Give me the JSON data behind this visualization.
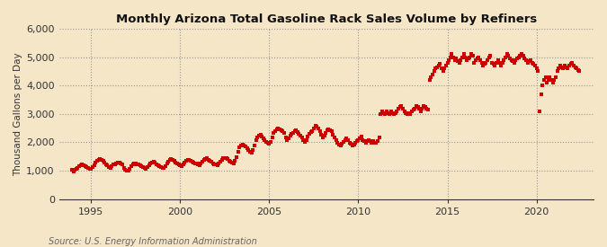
{
  "title": "Monthly Arizona Total Gasoline Rack Sales Volume by Refiners",
  "ylabel": "Thousand Gallons per Day",
  "source": "Source: U.S. Energy Information Administration",
  "background_color": "#f5e6c8",
  "plot_bg_color": "#f5e6c8",
  "marker_color": "#cc0000",
  "ylim": [
    0,
    6000
  ],
  "yticks": [
    0,
    1000,
    2000,
    3000,
    4000,
    5000,
    6000
  ],
  "xlim_start": 1993.2,
  "xlim_end": 2023.2,
  "xticks": [
    1995,
    2000,
    2005,
    2010,
    2015,
    2020
  ],
  "data": [
    [
      1993.917,
      1050
    ],
    [
      1994.0,
      980
    ],
    [
      1994.083,
      1020
    ],
    [
      1994.167,
      1080
    ],
    [
      1994.25,
      1100
    ],
    [
      1994.333,
      1150
    ],
    [
      1994.417,
      1180
    ],
    [
      1994.5,
      1220
    ],
    [
      1994.583,
      1200
    ],
    [
      1994.667,
      1170
    ],
    [
      1994.75,
      1140
    ],
    [
      1994.833,
      1100
    ],
    [
      1994.917,
      1080
    ],
    [
      1995.0,
      1060
    ],
    [
      1995.083,
      1120
    ],
    [
      1995.167,
      1200
    ],
    [
      1995.25,
      1300
    ],
    [
      1995.333,
      1350
    ],
    [
      1995.417,
      1380
    ],
    [
      1995.5,
      1420
    ],
    [
      1995.583,
      1390
    ],
    [
      1995.667,
      1340
    ],
    [
      1995.75,
      1280
    ],
    [
      1995.833,
      1230
    ],
    [
      1995.917,
      1180
    ],
    [
      1996.0,
      1140
    ],
    [
      1996.083,
      1100
    ],
    [
      1996.167,
      1160
    ],
    [
      1996.25,
      1210
    ],
    [
      1996.333,
      1240
    ],
    [
      1996.417,
      1260
    ],
    [
      1996.5,
      1290
    ],
    [
      1996.583,
      1280
    ],
    [
      1996.667,
      1260
    ],
    [
      1996.75,
      1230
    ],
    [
      1996.833,
      1100
    ],
    [
      1996.917,
      1050
    ],
    [
      1997.0,
      1000
    ],
    [
      1997.083,
      1010
    ],
    [
      1997.167,
      1080
    ],
    [
      1997.25,
      1150
    ],
    [
      1997.333,
      1220
    ],
    [
      1997.417,
      1250
    ],
    [
      1997.5,
      1270
    ],
    [
      1997.583,
      1240
    ],
    [
      1997.667,
      1210
    ],
    [
      1997.75,
      1180
    ],
    [
      1997.833,
      1150
    ],
    [
      1997.917,
      1120
    ],
    [
      1998.0,
      1090
    ],
    [
      1998.083,
      1070
    ],
    [
      1998.167,
      1130
    ],
    [
      1998.25,
      1200
    ],
    [
      1998.333,
      1260
    ],
    [
      1998.417,
      1290
    ],
    [
      1998.5,
      1310
    ],
    [
      1998.583,
      1280
    ],
    [
      1998.667,
      1240
    ],
    [
      1998.75,
      1200
    ],
    [
      1998.833,
      1170
    ],
    [
      1998.917,
      1140
    ],
    [
      1999.0,
      1110
    ],
    [
      1999.083,
      1100
    ],
    [
      1999.167,
      1170
    ],
    [
      1999.25,
      1250
    ],
    [
      1999.333,
      1320
    ],
    [
      1999.417,
      1370
    ],
    [
      1999.5,
      1400
    ],
    [
      1999.583,
      1370
    ],
    [
      1999.667,
      1340
    ],
    [
      1999.75,
      1300
    ],
    [
      1999.833,
      1260
    ],
    [
      1999.917,
      1220
    ],
    [
      2000.0,
      1190
    ],
    [
      2000.083,
      1160
    ],
    [
      2000.167,
      1230
    ],
    [
      2000.25,
      1290
    ],
    [
      2000.333,
      1340
    ],
    [
      2000.417,
      1370
    ],
    [
      2000.5,
      1390
    ],
    [
      2000.583,
      1360
    ],
    [
      2000.667,
      1330
    ],
    [
      2000.75,
      1300
    ],
    [
      2000.833,
      1270
    ],
    [
      2000.917,
      1250
    ],
    [
      2001.0,
      1220
    ],
    [
      2001.083,
      1200
    ],
    [
      2001.167,
      1270
    ],
    [
      2001.25,
      1330
    ],
    [
      2001.333,
      1370
    ],
    [
      2001.417,
      1400
    ],
    [
      2001.5,
      1430
    ],
    [
      2001.583,
      1390
    ],
    [
      2001.667,
      1350
    ],
    [
      2001.75,
      1310
    ],
    [
      2001.833,
      1270
    ],
    [
      2001.917,
      1240
    ],
    [
      2002.0,
      1210
    ],
    [
      2002.083,
      1190
    ],
    [
      2002.167,
      1260
    ],
    [
      2002.25,
      1330
    ],
    [
      2002.333,
      1380
    ],
    [
      2002.417,
      1430
    ],
    [
      2002.5,
      1460
    ],
    [
      2002.583,
      1430
    ],
    [
      2002.667,
      1400
    ],
    [
      2002.75,
      1360
    ],
    [
      2002.833,
      1320
    ],
    [
      2002.917,
      1290
    ],
    [
      2003.0,
      1270
    ],
    [
      2003.083,
      1340
    ],
    [
      2003.167,
      1490
    ],
    [
      2003.25,
      1680
    ],
    [
      2003.333,
      1820
    ],
    [
      2003.417,
      1880
    ],
    [
      2003.5,
      1930
    ],
    [
      2003.583,
      1900
    ],
    [
      2003.667,
      1860
    ],
    [
      2003.75,
      1800
    ],
    [
      2003.833,
      1730
    ],
    [
      2003.917,
      1670
    ],
    [
      2004.0,
      1650
    ],
    [
      2004.083,
      1730
    ],
    [
      2004.167,
      1890
    ],
    [
      2004.25,
      2080
    ],
    [
      2004.333,
      2180
    ],
    [
      2004.417,
      2230
    ],
    [
      2004.5,
      2260
    ],
    [
      2004.583,
      2190
    ],
    [
      2004.667,
      2130
    ],
    [
      2004.75,
      2070
    ],
    [
      2004.833,
      2020
    ],
    [
      2004.917,
      1980
    ],
    [
      2005.0,
      1960
    ],
    [
      2005.083,
      2030
    ],
    [
      2005.167,
      2180
    ],
    [
      2005.25,
      2330
    ],
    [
      2005.333,
      2400
    ],
    [
      2005.417,
      2450
    ],
    [
      2005.5,
      2490
    ],
    [
      2005.583,
      2460
    ],
    [
      2005.667,
      2430
    ],
    [
      2005.75,
      2380
    ],
    [
      2005.833,
      2320
    ],
    [
      2005.917,
      2180
    ],
    [
      2006.0,
      2090
    ],
    [
      2006.083,
      2130
    ],
    [
      2006.167,
      2230
    ],
    [
      2006.25,
      2290
    ],
    [
      2006.333,
      2340
    ],
    [
      2006.417,
      2390
    ],
    [
      2006.5,
      2440
    ],
    [
      2006.583,
      2370
    ],
    [
      2006.667,
      2300
    ],
    [
      2006.75,
      2230
    ],
    [
      2006.833,
      2160
    ],
    [
      2006.917,
      2080
    ],
    [
      2007.0,
      2030
    ],
    [
      2007.083,
      2080
    ],
    [
      2007.167,
      2190
    ],
    [
      2007.25,
      2290
    ],
    [
      2007.333,
      2350
    ],
    [
      2007.417,
      2400
    ],
    [
      2007.5,
      2480
    ],
    [
      2007.583,
      2580
    ],
    [
      2007.667,
      2540
    ],
    [
      2007.75,
      2490
    ],
    [
      2007.833,
      2380
    ],
    [
      2007.917,
      2280
    ],
    [
      2008.0,
      2180
    ],
    [
      2008.083,
      2230
    ],
    [
      2008.167,
      2330
    ],
    [
      2008.25,
      2430
    ],
    [
      2008.333,
      2460
    ],
    [
      2008.417,
      2440
    ],
    [
      2008.5,
      2380
    ],
    [
      2008.583,
      2280
    ],
    [
      2008.667,
      2180
    ],
    [
      2008.75,
      2080
    ],
    [
      2008.833,
      1980
    ],
    [
      2008.917,
      1930
    ],
    [
      2009.0,
      1900
    ],
    [
      2009.083,
      1940
    ],
    [
      2009.167,
      2030
    ],
    [
      2009.25,
      2090
    ],
    [
      2009.333,
      2140
    ],
    [
      2009.417,
      2090
    ],
    [
      2009.5,
      1990
    ],
    [
      2009.583,
      1940
    ],
    [
      2009.667,
      1890
    ],
    [
      2009.75,
      1930
    ],
    [
      2009.833,
      1990
    ],
    [
      2009.917,
      2040
    ],
    [
      2010.0,
      2090
    ],
    [
      2010.083,
      2130
    ],
    [
      2010.167,
      2190
    ],
    [
      2010.25,
      2090
    ],
    [
      2010.333,
      2040
    ],
    [
      2010.417,
      1990
    ],
    [
      2010.5,
      2040
    ],
    [
      2010.583,
      2090
    ],
    [
      2010.667,
      2040
    ],
    [
      2010.75,
      1990
    ],
    [
      2010.833,
      2040
    ],
    [
      2010.917,
      1990
    ],
    [
      2011.0,
      1970
    ],
    [
      2011.083,
      2040
    ],
    [
      2011.167,
      2180
    ],
    [
      2011.25,
      3000
    ],
    [
      2011.333,
      3080
    ],
    [
      2011.417,
      3040
    ],
    [
      2011.5,
      2990
    ],
    [
      2011.583,
      3080
    ],
    [
      2011.667,
      3040
    ],
    [
      2011.75,
      2990
    ],
    [
      2011.833,
      3080
    ],
    [
      2011.917,
      3040
    ],
    [
      2012.0,
      2990
    ],
    [
      2012.083,
      3040
    ],
    [
      2012.167,
      3090
    ],
    [
      2012.25,
      3180
    ],
    [
      2012.333,
      3240
    ],
    [
      2012.417,
      3290
    ],
    [
      2012.5,
      3190
    ],
    [
      2012.583,
      3090
    ],
    [
      2012.667,
      3040
    ],
    [
      2012.75,
      2990
    ],
    [
      2012.833,
      3040
    ],
    [
      2012.917,
      2990
    ],
    [
      2013.0,
      3080
    ],
    [
      2013.083,
      3140
    ],
    [
      2013.167,
      3190
    ],
    [
      2013.25,
      3290
    ],
    [
      2013.333,
      3240
    ],
    [
      2013.417,
      3190
    ],
    [
      2013.5,
      3090
    ],
    [
      2013.583,
      3190
    ],
    [
      2013.667,
      3290
    ],
    [
      2013.75,
      3240
    ],
    [
      2013.833,
      3190
    ],
    [
      2013.917,
      3140
    ],
    [
      2014.0,
      4200
    ],
    [
      2014.083,
      4300
    ],
    [
      2014.167,
      4400
    ],
    [
      2014.25,
      4500
    ],
    [
      2014.333,
      4600
    ],
    [
      2014.417,
      4650
    ],
    [
      2014.5,
      4700
    ],
    [
      2014.583,
      4750
    ],
    [
      2014.667,
      4600
    ],
    [
      2014.75,
      4500
    ],
    [
      2014.833,
      4600
    ],
    [
      2014.917,
      4700
    ],
    [
      2015.0,
      4800
    ],
    [
      2015.083,
      4900
    ],
    [
      2015.167,
      5000
    ],
    [
      2015.25,
      5100
    ],
    [
      2015.333,
      5000
    ],
    [
      2015.417,
      4900
    ],
    [
      2015.5,
      4950
    ],
    [
      2015.583,
      4850
    ],
    [
      2015.667,
      4800
    ],
    [
      2015.75,
      4900
    ],
    [
      2015.833,
      5000
    ],
    [
      2015.917,
      5100
    ],
    [
      2016.0,
      5000
    ],
    [
      2016.083,
      4900
    ],
    [
      2016.167,
      4950
    ],
    [
      2016.25,
      5000
    ],
    [
      2016.333,
      5100
    ],
    [
      2016.417,
      5050
    ],
    [
      2016.5,
      4800
    ],
    [
      2016.583,
      4900
    ],
    [
      2016.667,
      4950
    ],
    [
      2016.75,
      5000
    ],
    [
      2016.833,
      4900
    ],
    [
      2016.917,
      4800
    ],
    [
      2017.0,
      4700
    ],
    [
      2017.083,
      4750
    ],
    [
      2017.167,
      4800
    ],
    [
      2017.25,
      4900
    ],
    [
      2017.333,
      5000
    ],
    [
      2017.417,
      5050
    ],
    [
      2017.5,
      4800
    ],
    [
      2017.583,
      4750
    ],
    [
      2017.667,
      4700
    ],
    [
      2017.75,
      4800
    ],
    [
      2017.833,
      4900
    ],
    [
      2017.917,
      4800
    ],
    [
      2018.0,
      4700
    ],
    [
      2018.083,
      4800
    ],
    [
      2018.167,
      4900
    ],
    [
      2018.25,
      5000
    ],
    [
      2018.333,
      5100
    ],
    [
      2018.417,
      5050
    ],
    [
      2018.5,
      4950
    ],
    [
      2018.583,
      4900
    ],
    [
      2018.667,
      4850
    ],
    [
      2018.75,
      4800
    ],
    [
      2018.833,
      4900
    ],
    [
      2018.917,
      4950
    ],
    [
      2019.0,
      5000
    ],
    [
      2019.083,
      5050
    ],
    [
      2019.167,
      5100
    ],
    [
      2019.25,
      5050
    ],
    [
      2019.333,
      4950
    ],
    [
      2019.417,
      4900
    ],
    [
      2019.5,
      4800
    ],
    [
      2019.583,
      4850
    ],
    [
      2019.667,
      4900
    ],
    [
      2019.75,
      4800
    ],
    [
      2019.833,
      4750
    ],
    [
      2019.917,
      4700
    ],
    [
      2020.0,
      4600
    ],
    [
      2020.083,
      4500
    ],
    [
      2020.167,
      3100
    ],
    [
      2020.25,
      3700
    ],
    [
      2020.333,
      4000
    ],
    [
      2020.417,
      4200
    ],
    [
      2020.5,
      4300
    ],
    [
      2020.583,
      4100
    ],
    [
      2020.667,
      4200
    ],
    [
      2020.75,
      4300
    ],
    [
      2020.833,
      4200
    ],
    [
      2020.917,
      4100
    ],
    [
      2021.0,
      4200
    ],
    [
      2021.083,
      4300
    ],
    [
      2021.167,
      4500
    ],
    [
      2021.25,
      4600
    ],
    [
      2021.333,
      4700
    ],
    [
      2021.417,
      4650
    ],
    [
      2021.5,
      4600
    ],
    [
      2021.583,
      4700
    ],
    [
      2021.667,
      4650
    ],
    [
      2021.75,
      4600
    ],
    [
      2021.833,
      4700
    ],
    [
      2021.917,
      4750
    ],
    [
      2022.0,
      4800
    ],
    [
      2022.083,
      4700
    ],
    [
      2022.167,
      4650
    ],
    [
      2022.25,
      4600
    ],
    [
      2022.333,
      4550
    ],
    [
      2022.417,
      4500
    ]
  ]
}
